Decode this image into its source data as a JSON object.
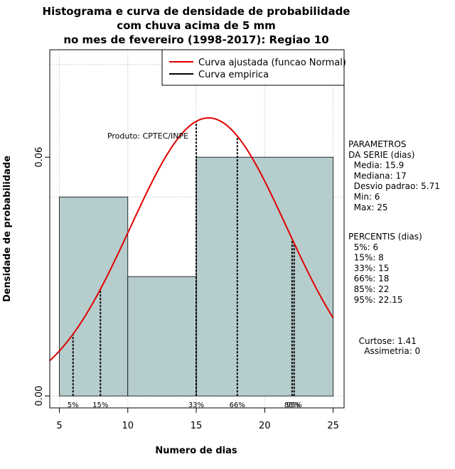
{
  "chart_data": {
    "type": "histogram",
    "title_lines": [
      "Histograma e curva de densidade de probabilidade",
      "com chuva acima de 5 mm",
      "no mes de fevereiro (1998-2017): Regiao 10"
    ],
    "xlabel": "Numero de dias",
    "ylabel": "Densidade de probabilidade",
    "xlim": [
      4.3,
      25.8
    ],
    "ylim": [
      -0.003,
      0.087
    ],
    "x_ticks": [
      5,
      10,
      15,
      20,
      25
    ],
    "y_ticks": [
      0.0,
      0.06
    ],
    "y_tick_labels": [
      "0.00",
      "0.06"
    ],
    "grid_x": [
      5,
      10,
      15,
      20,
      25
    ],
    "grid_y": [
      0.05,
      0.0833
    ],
    "bars": [
      {
        "x0": 5,
        "x1": 10,
        "density": 0.05
      },
      {
        "x0": 10,
        "x1": 15,
        "density": 0.03
      },
      {
        "x0": 15,
        "x1": 25,
        "density": 0.06
      }
    ],
    "normal_curve": {
      "mean": 15.9,
      "sd": 5.71,
      "x_range": [
        4.3,
        25
      ]
    },
    "percentile_lines": [
      {
        "label": "5%",
        "x": 6
      },
      {
        "label": "15%",
        "x": 8
      },
      {
        "label": "33%",
        "x": 15
      },
      {
        "label": "66%",
        "x": 18
      },
      {
        "label": "85%",
        "x": 22
      },
      {
        "label": "95%",
        "x": 22.15
      }
    ],
    "legend": {
      "position": "top-right",
      "entries": [
        {
          "label": "Curva ajustada (funcao Normal)",
          "color": "#e00000"
        },
        {
          "label": "Curva empirica",
          "color": "#000000"
        }
      ]
    },
    "annotation": "Produto: CPTEC/INPE",
    "colors": {
      "bar_fill": "#b6cdcd",
      "curve": "#e00000",
      "grid": "#b4b4b4"
    }
  },
  "side_panel": {
    "params_lines": [
      "PARAMETROS",
      "DA SERIE (dias)",
      "  Media: 15.9",
      "  Mediana: 17",
      "  Desvio padrao: 5.71",
      "  Min: 6",
      "  Max: 25"
    ],
    "percentis_lines": [
      "PERCENTIS (dias)",
      "  5%: 6",
      "  15%: 8",
      "  33%: 15",
      "  66%: 18",
      "  85%: 22",
      "  95%: 22.15"
    ],
    "shape_lines": [
      "  Curtose: 1.41",
      "    Assimetria: 0"
    ]
  }
}
